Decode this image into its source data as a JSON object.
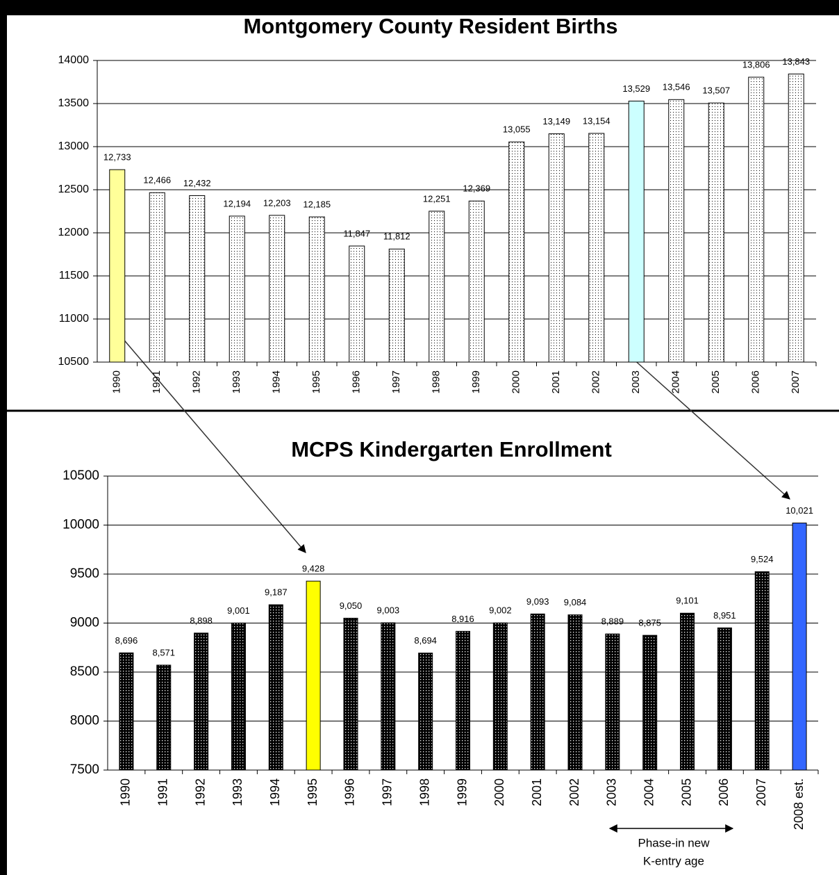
{
  "chart_data": [
    {
      "type": "bar",
      "title": "Montgomery County Resident Births",
      "categories": [
        "1990",
        "1991",
        "1992",
        "1993",
        "1994",
        "1995",
        "1996",
        "1997",
        "1998",
        "1999",
        "2000",
        "2001",
        "2002",
        "2003",
        "2004",
        "2005",
        "2006",
        "2007"
      ],
      "values": [
        12733,
        12466,
        12432,
        12194,
        12203,
        12185,
        11847,
        11812,
        12251,
        12369,
        13055,
        13149,
        13154,
        13529,
        13546,
        13507,
        13806,
        13843
      ],
      "value_labels": [
        "12,733",
        "12,466",
        "12,432",
        "12,194",
        "12,203",
        "12,185",
        "11,847",
        "11,812",
        "12,251",
        "12,369",
        "13,055",
        "13,149",
        "13,154",
        "13,529",
        "13,546",
        "13,507",
        "13,806",
        "13,843"
      ],
      "colors": [
        "#ffff99",
        "#ffffff",
        "#ffffff",
        "#ffffff",
        "#ffffff",
        "#ffffff",
        "#ffffff",
        "#ffffff",
        "#ffffff",
        "#ffffff",
        "#ffffff",
        "#ffffff",
        "#ffffff",
        "#ccffff",
        "#ffffff",
        "#ffffff",
        "#ffffff",
        "#ffffff"
      ],
      "ylim": [
        10500,
        14000
      ],
      "yticks": [
        10500,
        11000,
        11500,
        12000,
        12500,
        13000,
        13500,
        14000
      ],
      "grid": true
    },
    {
      "type": "bar",
      "title": "MCPS Kindergarten Enrollment",
      "categories": [
        "1990",
        "1991",
        "1992",
        "1993",
        "1994",
        "1995",
        "1996",
        "1997",
        "1998",
        "1999",
        "2000",
        "2001",
        "2002",
        "2003",
        "2004",
        "2005",
        "2006",
        "2007",
        "2008 est."
      ],
      "values": [
        8696,
        8571,
        8898,
        9001,
        9187,
        9428,
        9050,
        9003,
        8694,
        8916,
        9002,
        9093,
        9084,
        8889,
        8875,
        9101,
        8951,
        9524,
        10021
      ],
      "value_labels": [
        "8,696",
        "8,571",
        "8,898",
        "9,001",
        "9,187",
        "9,428",
        "9,050",
        "9,003",
        "8,694",
        "8,916",
        "9,002",
        "9,093",
        "9,084",
        "8,889",
        "8,875",
        "9,101",
        "8,951",
        "9,524",
        "10,021"
      ],
      "colors": [
        "#000000",
        "#000000",
        "#000000",
        "#000000",
        "#000000",
        "#ffff00",
        "#000000",
        "#000000",
        "#000000",
        "#000000",
        "#000000",
        "#000000",
        "#000000",
        "#000000",
        "#000000",
        "#000000",
        "#000000",
        "#000000",
        "#3366ff"
      ],
      "ylim": [
        7500,
        10500
      ],
      "yticks": [
        7500,
        8000,
        8500,
        9000,
        9500,
        10000,
        10500
      ],
      "grid": true,
      "annotation": [
        "Phase-in new",
        "K-entry age"
      ]
    }
  ]
}
